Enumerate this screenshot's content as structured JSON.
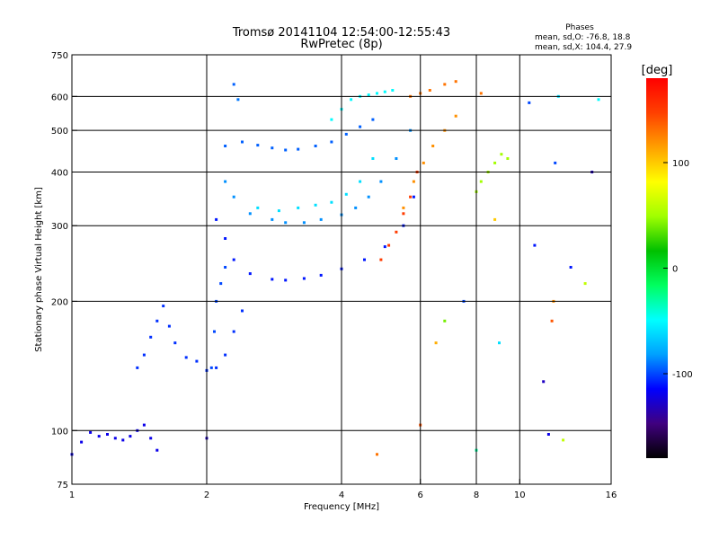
{
  "chart_data": {
    "type": "scatter",
    "title": "Tromsø 20141104 12:54:00-12:55:43",
    "subtitle": "RwPretec (8p)",
    "stats": {
      "heading": "Phases",
      "line_o": "mean, sd,O: -76.8, 18.8",
      "line_x": "mean, sd,X: 104.4, 27.9"
    },
    "xlabel": "Frequency [MHz]",
    "ylabel": "Stationary phase Virtual Height [km]",
    "x_scale": "log",
    "y_scale": "log",
    "xlim": [
      1,
      16
    ],
    "ylim": [
      75,
      750
    ],
    "x_ticks": [
      {
        "value": 1,
        "label": "1"
      },
      {
        "value": 2,
        "label": "2"
      },
      {
        "value": 4,
        "label": "4"
      },
      {
        "value": 6,
        "label": "6"
      },
      {
        "value": 8,
        "label": "8"
      },
      {
        "value": 10,
        "label": "10"
      },
      {
        "value": 16,
        "label": "16"
      }
    ],
    "x_grid": [
      2,
      4,
      6,
      8,
      10
    ],
    "y_ticks": [
      {
        "value": 75,
        "label": "75"
      },
      {
        "value": 100,
        "label": "100"
      },
      {
        "value": 200,
        "label": "200"
      },
      {
        "value": 300,
        "label": "300"
      },
      {
        "value": 400,
        "label": "400"
      },
      {
        "value": 500,
        "label": "500"
      },
      {
        "value": 600,
        "label": "600"
      },
      {
        "value": 750,
        "label": "750"
      }
    ],
    "y_grid": [
      100,
      200,
      300,
      400,
      500,
      600
    ],
    "colorbar": {
      "label": "[deg]",
      "range": [
        -180,
        180
      ],
      "ticks": [
        {
          "value": 100,
          "label": "100"
        },
        {
          "value": 0,
          "label": "0"
        },
        {
          "value": -100,
          "label": "-100"
        }
      ],
      "colors": [
        "#000000",
        "#40007f",
        "#0000ff",
        "#00a0ff",
        "#00ffff",
        "#00ff60",
        "#00c000",
        "#a0ff00",
        "#ffff00",
        "#ffa000",
        "#ff4000",
        "#ff0000"
      ]
    },
    "traces": [
      {
        "x": [
          1.0,
          1.05,
          1.1,
          1.15,
          1.2,
          1.25,
          1.3,
          1.35,
          1.4,
          1.45,
          1.5,
          1.55
        ],
        "y": [
          88,
          94,
          99,
          97,
          98,
          96,
          95,
          97,
          100,
          103,
          96,
          90
        ],
        "phase": -120
      },
      {
        "x": [
          1.4,
          1.45,
          1.5,
          1.55,
          1.6,
          1.65,
          1.7,
          1.8,
          1.9,
          2.0,
          2.1,
          2.2,
          2.3,
          2.4
        ],
        "y": [
          140,
          150,
          165,
          180,
          195,
          175,
          160,
          148,
          145,
          138,
          140,
          150,
          170,
          190
        ],
        "phase": -105
      },
      {
        "x": [
          2.05,
          2.08,
          2.1,
          2.15,
          2.2
        ],
        "y": [
          140,
          170,
          200,
          220,
          240
        ],
        "phase": -100
      },
      {
        "x": [
          2.1,
          2.2,
          2.3,
          2.5,
          2.8,
          3.0,
          3.3,
          3.6,
          4.0,
          4.5,
          5.0,
          5.5,
          5.8
        ],
        "y": [
          310,
          280,
          250,
          232,
          225,
          224,
          226,
          230,
          238,
          250,
          268,
          300,
          350
        ],
        "phase": -110
      },
      {
        "x": [
          2.2,
          2.3,
          2.5,
          2.8,
          3.0,
          3.3,
          3.6,
          4.0,
          4.3,
          4.6,
          4.9,
          5.3,
          5.7
        ],
        "y": [
          380,
          350,
          320,
          310,
          305,
          305,
          310,
          318,
          330,
          350,
          380,
          430,
          500
        ],
        "phase": -85
      },
      {
        "x": [
          2.6,
          2.9,
          3.2,
          3.5,
          3.8,
          4.1,
          4.4,
          4.7
        ],
        "y": [
          330,
          325,
          330,
          335,
          340,
          355,
          380,
          430
        ],
        "phase": -60
      },
      {
        "x": [
          2.2,
          2.4,
          2.6,
          2.8,
          3.0,
          3.2,
          3.5,
          3.8,
          4.1,
          4.4,
          4.7
        ],
        "y": [
          460,
          470,
          462,
          455,
          450,
          452,
          460,
          470,
          490,
          510,
          530
        ],
        "phase": -95
      },
      {
        "x": [
          3.8,
          4.0,
          4.2,
          4.4,
          4.6,
          4.8,
          5.0,
          5.2
        ],
        "y": [
          530,
          560,
          590,
          600,
          605,
          610,
          615,
          620
        ],
        "phase": -50
      },
      {
        "x": [
          4.9,
          5.1,
          5.3,
          5.5,
          5.7,
          5.9
        ],
        "y": [
          250,
          270,
          290,
          320,
          350,
          400
        ],
        "phase": 150
      },
      {
        "x": [
          5.5,
          5.8,
          6.1,
          6.4,
          6.8,
          7.2
        ],
        "y": [
          330,
          380,
          420,
          460,
          500,
          540
        ],
        "phase": 120
      },
      {
        "x": [
          8.0,
          8.2,
          8.5,
          8.8,
          9.1,
          9.4
        ],
        "y": [
          360,
          380,
          400,
          420,
          440,
          430
        ],
        "phase": 50
      },
      {
        "x": [
          5.7,
          6.0,
          6.3,
          6.8,
          7.2,
          8.2
        ],
        "y": [
          600,
          610,
          620,
          640,
          650,
          610
        ],
        "phase": 130
      }
    ],
    "scattered_points": [
      {
        "x": 2.0,
        "y": 96,
        "phase": -130
      },
      {
        "x": 2.3,
        "y": 640,
        "phase": -95
      },
      {
        "x": 2.35,
        "y": 590,
        "phase": -90
      },
      {
        "x": 4.8,
        "y": 88,
        "phase": 130
      },
      {
        "x": 6.0,
        "y": 103,
        "phase": 140
      },
      {
        "x": 6.5,
        "y": 160,
        "phase": 110
      },
      {
        "x": 6.8,
        "y": 180,
        "phase": 40
      },
      {
        "x": 7.5,
        "y": 200,
        "phase": -100
      },
      {
        "x": 8.0,
        "y": 90,
        "phase": -30
      },
      {
        "x": 8.8,
        "y": 310,
        "phase": 100
      },
      {
        "x": 9.0,
        "y": 160,
        "phase": -60
      },
      {
        "x": 11.3,
        "y": 130,
        "phase": -130
      },
      {
        "x": 11.6,
        "y": 98,
        "phase": -120
      },
      {
        "x": 11.8,
        "y": 180,
        "phase": 140
      },
      {
        "x": 11.9,
        "y": 200,
        "phase": 120
      },
      {
        "x": 12.0,
        "y": 420,
        "phase": -100
      },
      {
        "x": 12.2,
        "y": 600,
        "phase": -60
      },
      {
        "x": 12.5,
        "y": 95,
        "phase": 60
      },
      {
        "x": 13.0,
        "y": 240,
        "phase": -110
      },
      {
        "x": 14.0,
        "y": 220,
        "phase": 60
      },
      {
        "x": 14.5,
        "y": 400,
        "phase": -130
      },
      {
        "x": 15.0,
        "y": 590,
        "phase": -50
      },
      {
        "x": 10.5,
        "y": 580,
        "phase": -100
      },
      {
        "x": 10.8,
        "y": 270,
        "phase": -110
      }
    ]
  }
}
